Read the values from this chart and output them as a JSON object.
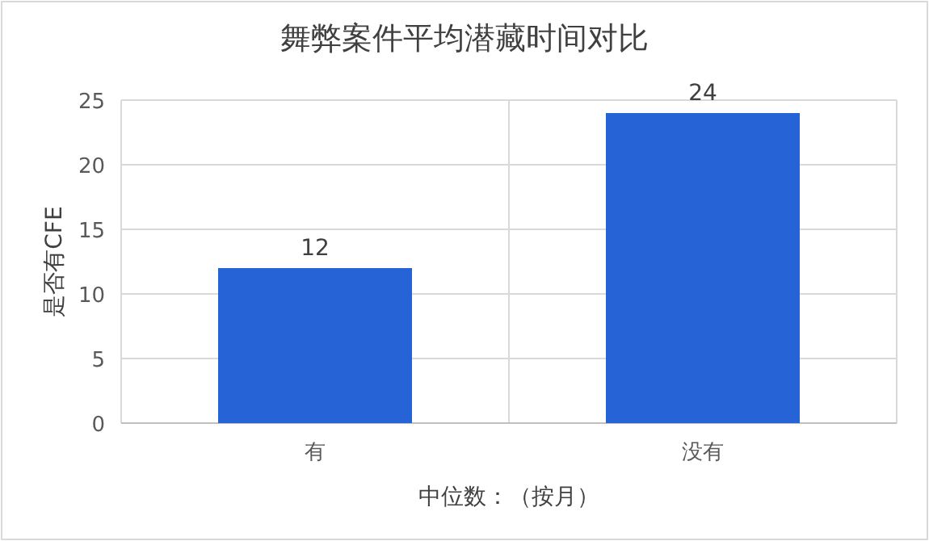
{
  "chart_data": {
    "type": "bar",
    "title": "舞弊案件平均潜藏时间对比",
    "xlabel": "中位数：（按月）",
    "ylabel": "是否有CFE",
    "categories": [
      "有",
      "没有"
    ],
    "values": [
      12,
      24
    ],
    "color": "#2563d6",
    "ylim": [
      0,
      25
    ],
    "yticks": [
      0,
      5,
      10,
      15,
      20,
      25
    ],
    "grid": "y",
    "data_labels": true
  }
}
